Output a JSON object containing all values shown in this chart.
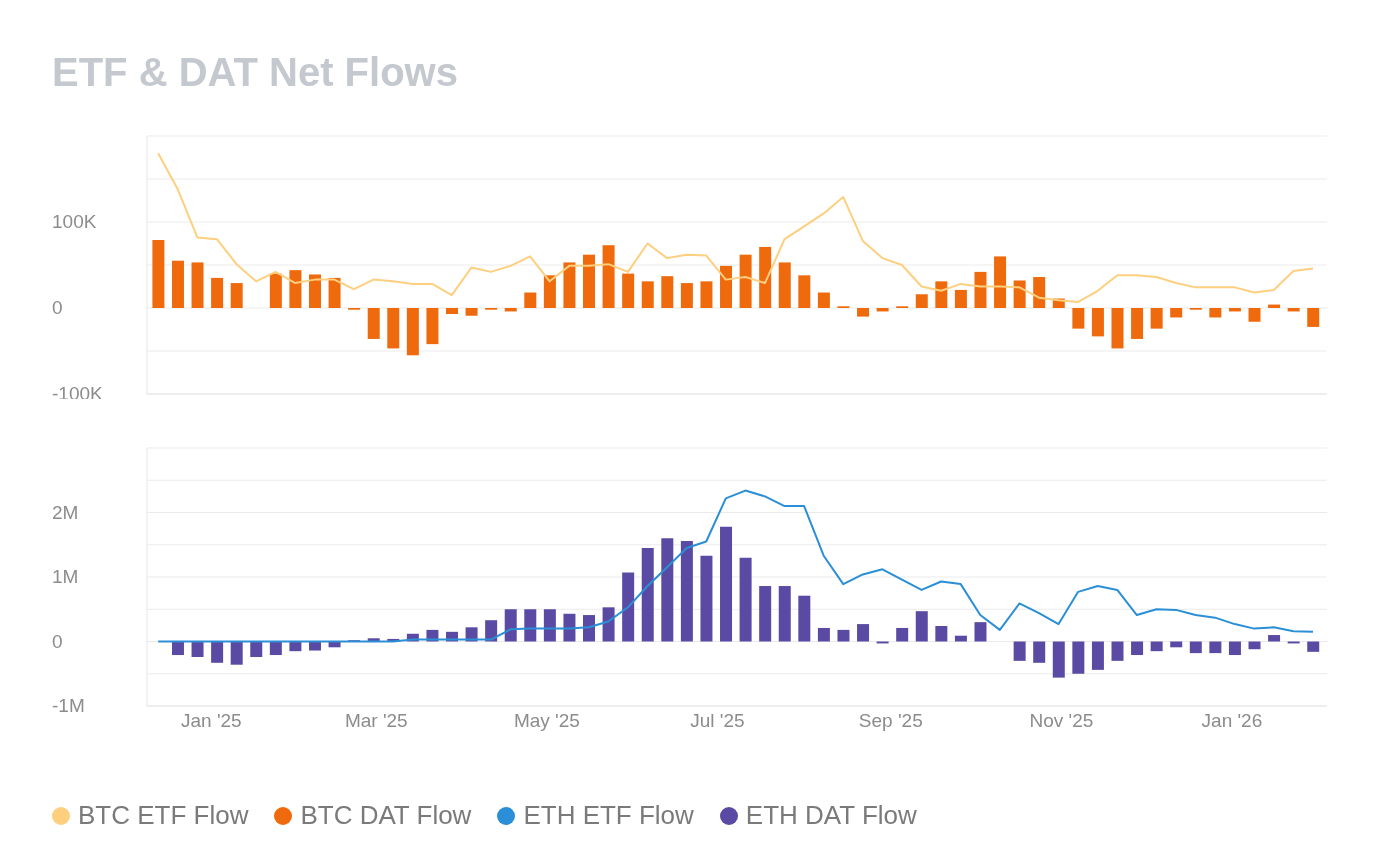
{
  "chart_data": [
    {
      "type": "bar",
      "title": "ETF & DAT Net Flows",
      "legend": "bottom",
      "grid": "y",
      "tick_labels": "y",
      "x": [
        "2024-12-13",
        "2024-12-20",
        "2024-12-27",
        "2025-01-03",
        "2025-01-10",
        "2025-01-17",
        "2025-01-24",
        "2025-01-31",
        "2025-02-07",
        "2025-02-14",
        "2025-02-21",
        "2025-02-28",
        "2025-03-07",
        "2025-03-14",
        "2025-03-21",
        "2025-03-28",
        "2025-04-04",
        "2025-04-11",
        "2025-04-18",
        "2025-04-25",
        "2025-05-02",
        "2025-05-09",
        "2025-05-16",
        "2025-05-23",
        "2025-05-30",
        "2025-06-06",
        "2025-06-13",
        "2025-06-20",
        "2025-06-27",
        "2025-07-04",
        "2025-07-11",
        "2025-07-18",
        "2025-07-25",
        "2025-08-01",
        "2025-08-08",
        "2025-08-15",
        "2025-08-22",
        "2025-08-29",
        "2025-09-05",
        "2025-09-12",
        "2025-09-19",
        "2025-09-26",
        "2025-10-03",
        "2025-10-10",
        "2025-10-17",
        "2025-10-24",
        "2025-10-31",
        "2025-11-07",
        "2025-11-14",
        "2025-11-21",
        "2025-11-28",
        "2025-12-05",
        "2025-12-12",
        "2025-12-19",
        "2025-12-26",
        "2026-01-02",
        "2026-01-09",
        "2026-01-16",
        "2026-01-23",
        "2026-01-30"
      ],
      "xlim": [
        "2024-12-09",
        "2026-02-04"
      ],
      "ylim": [
        -100000,
        200000
      ],
      "yticks": [
        {
          "value": -100000,
          "label": "-100K"
        },
        {
          "value": -50000,
          "label": null
        },
        {
          "value": 0,
          "label": "0"
        },
        {
          "value": 50000,
          "label": null
        },
        {
          "value": 100000,
          "label": "100K"
        },
        {
          "value": 150000,
          "label": null
        },
        {
          "value": 200000,
          "label": null
        }
      ],
      "series": [
        {
          "name": "BTC ETF Flow",
          "type": "line",
          "color": "#fdcf7f",
          "values": [
            180000,
            138000,
            82000,
            80000,
            51000,
            31000,
            42000,
            29000,
            33000,
            33000,
            22000,
            33000,
            31000,
            28000,
            28000,
            15000,
            47000,
            42000,
            49000,
            60000,
            31000,
            49000,
            49000,
            51000,
            42000,
            75000,
            58000,
            62000,
            61000,
            33000,
            36000,
            29000,
            80000,
            95000,
            110000,
            129000,
            78000,
            58000,
            50000,
            25000,
            20000,
            28000,
            25000,
            25000,
            24000,
            12000,
            9000,
            7000,
            20000,
            38000,
            38000,
            36000,
            29000,
            24000,
            24000,
            24000,
            18000,
            21000,
            43000,
            46000
          ]
        },
        {
          "name": "BTC DAT Flow",
          "color": "#ee6a0c",
          "values": [
            79000,
            55000,
            53000,
            35000,
            29000,
            0,
            40000,
            44000,
            39000,
            35000,
            -2000,
            -36000,
            -47000,
            -55000,
            -42000,
            -7000,
            -9000,
            -2000,
            -4000,
            18000,
            38000,
            53000,
            62000,
            73000,
            40000,
            31000,
            37000,
            29000,
            31000,
            49000,
            62000,
            71000,
            53000,
            38000,
            18000,
            2000,
            -10000,
            -4000,
            2000,
            16000,
            31000,
            21000,
            42000,
            60000,
            32000,
            36000,
            11000,
            -24000,
            -33000,
            -47000,
            -36000,
            -24000,
            -11000,
            -2000,
            -11000,
            -4000,
            -16000,
            4000,
            -4000,
            -22000
          ]
        }
      ]
    },
    {
      "type": "bar",
      "legend": "bottom",
      "grid": "y",
      "x": [
        "2024-12-13",
        "2024-12-20",
        "2024-12-27",
        "2025-01-03",
        "2025-01-10",
        "2025-01-17",
        "2025-01-24",
        "2025-01-31",
        "2025-02-07",
        "2025-02-14",
        "2025-02-21",
        "2025-02-28",
        "2025-03-07",
        "2025-03-14",
        "2025-03-21",
        "2025-03-28",
        "2025-04-04",
        "2025-04-11",
        "2025-04-18",
        "2025-04-25",
        "2025-05-02",
        "2025-05-09",
        "2025-05-16",
        "2025-05-23",
        "2025-05-30",
        "2025-06-06",
        "2025-06-13",
        "2025-06-20",
        "2025-06-27",
        "2025-07-04",
        "2025-07-11",
        "2025-07-18",
        "2025-07-25",
        "2025-08-01",
        "2025-08-08",
        "2025-08-15",
        "2025-08-22",
        "2025-08-29",
        "2025-09-05",
        "2025-09-12",
        "2025-09-19",
        "2025-09-26",
        "2025-10-03",
        "2025-10-10",
        "2025-10-17",
        "2025-10-24",
        "2025-10-31",
        "2025-11-07",
        "2025-11-14",
        "2025-11-21",
        "2025-11-28",
        "2025-12-05",
        "2025-12-12",
        "2025-12-19",
        "2025-12-26",
        "2026-01-02",
        "2026-01-09",
        "2026-01-16",
        "2026-01-23",
        "2026-01-30"
      ],
      "xlim": [
        "2024-12-09",
        "2026-02-04"
      ],
      "xticks": [
        {
          "value": "2025-01-01",
          "label": "Jan '25"
        },
        {
          "value": "2025-03-01",
          "label": "Mar '25"
        },
        {
          "value": "2025-05-01",
          "label": "May '25"
        },
        {
          "value": "2025-07-01",
          "label": "Jul '25"
        },
        {
          "value": "2025-09-01",
          "label": "Sep '25"
        },
        {
          "value": "2025-11-01",
          "label": "Nov '25"
        },
        {
          "value": "2026-01-01",
          "label": "Jan '26"
        }
      ],
      "ylim": [
        -1000000,
        3000000
      ],
      "yticks": [
        {
          "value": -1000000,
          "label": "-1M"
        },
        {
          "value": -500000,
          "label": null
        },
        {
          "value": 0,
          "label": "0"
        },
        {
          "value": 500000,
          "label": null
        },
        {
          "value": 1000000,
          "label": "1M"
        },
        {
          "value": 1500000,
          "label": null
        },
        {
          "value": 2000000,
          "label": "2M"
        },
        {
          "value": 2500000,
          "label": null
        },
        {
          "value": 3000000,
          "label": null
        }
      ],
      "series": [
        {
          "name": "ETH ETF Flow",
          "type": "line",
          "color": "#2a8fd6",
          "values": [
            0,
            0,
            0,
            0,
            0,
            0,
            0,
            0,
            0,
            0,
            0,
            0,
            0,
            30000,
            30000,
            30000,
            30000,
            30000,
            190000,
            200000,
            200000,
            200000,
            220000,
            310000,
            530000,
            860000,
            1150000,
            1450000,
            1550000,
            2220000,
            2340000,
            2250000,
            2100000,
            2100000,
            1330000,
            890000,
            1040000,
            1120000,
            960000,
            800000,
            930000,
            890000,
            410000,
            180000,
            590000,
            440000,
            270000,
            770000,
            860000,
            800000,
            410000,
            500000,
            490000,
            410000,
            370000,
            270000,
            200000,
            220000,
            160000,
            150000
          ]
        },
        {
          "name": "ETH DAT Flow",
          "color": "#5a4aa3",
          "values": [
            0,
            -210000,
            -240000,
            -330000,
            -360000,
            -240000,
            -210000,
            -150000,
            -140000,
            -90000,
            20000,
            50000,
            40000,
            120000,
            180000,
            150000,
            220000,
            330000,
            500000,
            500000,
            500000,
            430000,
            410000,
            530000,
            1070000,
            1450000,
            1600000,
            1560000,
            1330000,
            1780000,
            1300000,
            860000,
            860000,
            710000,
            210000,
            180000,
            270000,
            -30000,
            210000,
            470000,
            240000,
            90000,
            300000,
            0,
            -300000,
            -330000,
            -560000,
            -500000,
            -440000,
            -300000,
            -210000,
            -150000,
            -90000,
            -180000,
            -180000,
            -210000,
            -120000,
            100000,
            -30000,
            -160000
          ]
        }
      ]
    }
  ]
}
